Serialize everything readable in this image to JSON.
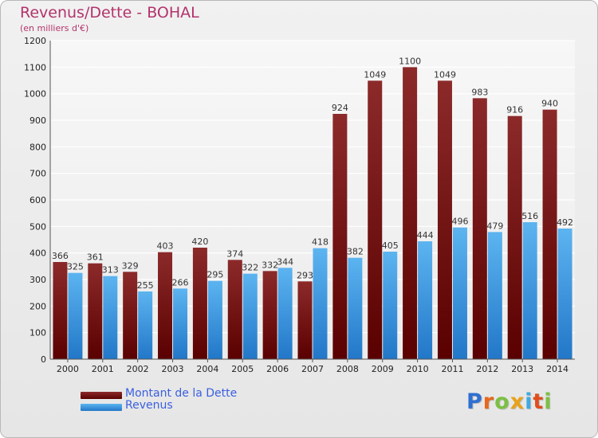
{
  "title": "Revenus/Dette - BOHAL",
  "subtitle": "(en milliers d'€)",
  "chart_data": {
    "type": "bar",
    "categories": [
      "2000",
      "2001",
      "2002",
      "2003",
      "2004",
      "2005",
      "2006",
      "2007",
      "2008",
      "2009",
      "2010",
      "2011",
      "2012",
      "2013",
      "2014"
    ],
    "series": [
      {
        "name": "Montant de la Dette",
        "values": [
          366,
          361,
          329,
          403,
          420,
          374,
          332,
          293,
          924,
          1049,
          1100,
          1049,
          983,
          916,
          940
        ],
        "color": "#7a1010"
      },
      {
        "name": "Revenus",
        "values": [
          325,
          313,
          255,
          266,
          295,
          322,
          344,
          418,
          382,
          405,
          444,
          496,
          479,
          516,
          492
        ],
        "color": "#3f9de0"
      }
    ],
    "ylim": [
      0,
      1200
    ],
    "yticks": [
      0,
      100,
      200,
      300,
      400,
      500,
      600,
      700,
      800,
      900,
      1000,
      1100,
      1200
    ],
    "grid": true,
    "legend_position": "bottom-left"
  },
  "logo": {
    "letters": [
      {
        "ch": "P",
        "color": "#2f6fd0"
      },
      {
        "ch": "r",
        "color": "#e8671b"
      },
      {
        "ch": "o",
        "color": "#7cc043"
      },
      {
        "ch": "x",
        "color": "#e8a21b"
      },
      {
        "ch": "i",
        "color": "#3fa9e0"
      },
      {
        "ch": "t",
        "color": "#e04d1b"
      },
      {
        "ch": "i",
        "color": "#7cc043"
      }
    ]
  }
}
